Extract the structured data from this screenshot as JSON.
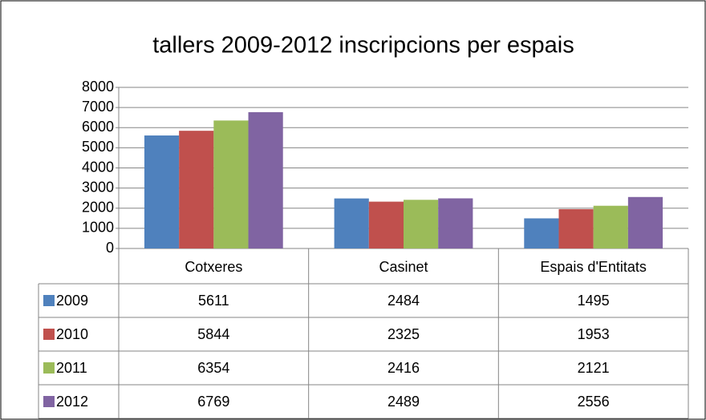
{
  "chart_data": {
    "type": "bar",
    "title": "tallers 2009-2012 inscripcions per espais",
    "categories": [
      "Cotxeres",
      "Casinet",
      "Espais d'Entitats"
    ],
    "series": [
      {
        "name": "2009",
        "color": "#4f81bd",
        "values": [
          5611,
          2484,
          1495
        ]
      },
      {
        "name": "2010",
        "color": "#c0504d",
        "values": [
          5844,
          2325,
          1953
        ]
      },
      {
        "name": "2011",
        "color": "#9bbb59",
        "values": [
          6354,
          2416,
          2121
        ]
      },
      {
        "name": "2012",
        "color": "#8064a2",
        "values": [
          6769,
          2489,
          2556
        ]
      }
    ],
    "ylim": [
      0,
      8000
    ],
    "yticks": [
      0,
      1000,
      2000,
      3000,
      4000,
      5000,
      6000,
      7000,
      8000
    ],
    "grid": true
  }
}
